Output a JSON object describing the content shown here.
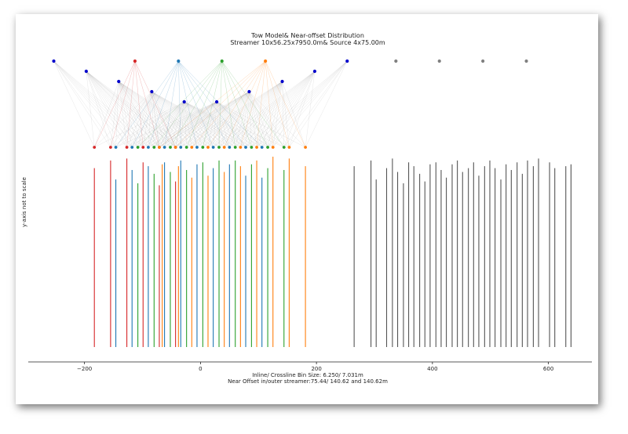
{
  "chart_data": {
    "type": "scatter",
    "title": "Tow Model& Near-offset Distribution",
    "subtitle": "Streamer 10x56.25x7950.0m& Source 4x75.00m",
    "xlabel_line1": "Inline/ Crossline Bin Size: 6.250/ 7.031m",
    "xlabel_line2": "Near Offset in/outer streamer:75.44/ 140.62 and 140.62m",
    "ylabel": "y-axis not to scale",
    "xlim": [
      -297,
      675
    ],
    "x_ticks": [
      -200,
      0,
      200,
      400,
      600
    ],
    "x_tick_labels": [
      "−200",
      "0",
      "200",
      "400",
      "600"
    ],
    "colors": {
      "red": "#d62728",
      "blue": "#1f77b4",
      "green": "#2ca02c",
      "orange": "#ff7f0e",
      "navy": "#0000cc",
      "gray": "#808080",
      "line": "#555555"
    },
    "sources": [
      {
        "x": -113,
        "color": "red"
      },
      {
        "x": -38,
        "color": "blue"
      },
      {
        "x": 37,
        "color": "green"
      },
      {
        "x": 112,
        "color": "orange"
      }
    ],
    "streamer_fronts": [
      {
        "x": -253,
        "level": 0
      },
      {
        "x": -197,
        "level": 1
      },
      {
        "x": -141,
        "level": 2
      },
      {
        "x": -84,
        "level": 3
      },
      {
        "x": -28,
        "level": 4
      },
      {
        "x": 28,
        "level": 4
      },
      {
        "x": 84,
        "level": 3
      },
      {
        "x": 141,
        "level": 2
      },
      {
        "x": 197,
        "level": 1
      },
      {
        "x": 253,
        "level": 0
      }
    ],
    "gray_top_points": [
      337,
      412,
      487,
      562
    ],
    "midpoints": [
      {
        "x": -183,
        "color": "red"
      },
      {
        "x": -155,
        "color": "red"
      },
      {
        "x": -146,
        "color": "blue"
      },
      {
        "x": -127,
        "color": "red"
      },
      {
        "x": -118,
        "color": "blue"
      },
      {
        "x": -108,
        "color": "green"
      },
      {
        "x": -99,
        "color": "red"
      },
      {
        "x": -90,
        "color": "blue"
      },
      {
        "x": -80,
        "color": "green"
      },
      {
        "x": -71,
        "color": "red"
      },
      {
        "x": -71,
        "color": "orange"
      },
      {
        "x": -62,
        "color": "blue"
      },
      {
        "x": -52,
        "color": "green"
      },
      {
        "x": -43,
        "color": "red"
      },
      {
        "x": -43,
        "color": "orange"
      },
      {
        "x": -34,
        "color": "blue"
      },
      {
        "x": -24,
        "color": "green"
      },
      {
        "x": -15,
        "color": "orange"
      },
      {
        "x": -6,
        "color": "blue"
      },
      {
        "x": 4,
        "color": "green"
      },
      {
        "x": 13,
        "color": "orange"
      },
      {
        "x": 22,
        "color": "blue"
      },
      {
        "x": 32,
        "color": "green"
      },
      {
        "x": 41,
        "color": "orange"
      },
      {
        "x": 50,
        "color": "blue"
      },
      {
        "x": 60,
        "color": "green"
      },
      {
        "x": 69,
        "color": "orange"
      },
      {
        "x": 78,
        "color": "blue"
      },
      {
        "x": 88,
        "color": "green"
      },
      {
        "x": 97,
        "color": "orange"
      },
      {
        "x": 106,
        "color": "blue"
      },
      {
        "x": 116,
        "color": "green"
      },
      {
        "x": 125,
        "color": "orange"
      },
      {
        "x": 144,
        "color": "green"
      },
      {
        "x": 153,
        "color": "orange"
      },
      {
        "x": 181,
        "color": "orange"
      }
    ],
    "colored_bars": [
      {
        "x": -183,
        "h": 0.94,
        "color": "red"
      },
      {
        "x": -155,
        "h": 0.98,
        "color": "red"
      },
      {
        "x": -146,
        "h": 0.88,
        "color": "blue"
      },
      {
        "x": -127,
        "h": 0.99,
        "color": "red"
      },
      {
        "x": -118,
        "h": 0.93,
        "color": "blue"
      },
      {
        "x": -108,
        "h": 0.86,
        "color": "green"
      },
      {
        "x": -99,
        "h": 0.97,
        "color": "red"
      },
      {
        "x": -90,
        "h": 0.95,
        "color": "blue"
      },
      {
        "x": -80,
        "h": 0.91,
        "color": "green"
      },
      {
        "x": -71,
        "h": 0.85,
        "color": "red"
      },
      {
        "x": -66,
        "h": 0.96,
        "color": "orange"
      },
      {
        "x": -62,
        "h": 0.97,
        "color": "blue"
      },
      {
        "x": -52,
        "h": 0.92,
        "color": "green"
      },
      {
        "x": -43,
        "h": 0.87,
        "color": "red"
      },
      {
        "x": -38,
        "h": 0.95,
        "color": "orange"
      },
      {
        "x": -34,
        "h": 0.98,
        "color": "blue"
      },
      {
        "x": -24,
        "h": 0.93,
        "color": "green"
      },
      {
        "x": -15,
        "h": 0.89,
        "color": "orange"
      },
      {
        "x": -6,
        "h": 0.96,
        "color": "blue"
      },
      {
        "x": 4,
        "h": 0.97,
        "color": "green"
      },
      {
        "x": 13,
        "h": 0.9,
        "color": "orange"
      },
      {
        "x": 22,
        "h": 0.94,
        "color": "blue"
      },
      {
        "x": 32,
        "h": 0.98,
        "color": "green"
      },
      {
        "x": 41,
        "h": 0.92,
        "color": "orange"
      },
      {
        "x": 50,
        "h": 0.96,
        "color": "blue"
      },
      {
        "x": 60,
        "h": 0.98,
        "color": "green"
      },
      {
        "x": 69,
        "h": 0.95,
        "color": "orange"
      },
      {
        "x": 78,
        "h": 0.9,
        "color": "blue"
      },
      {
        "x": 88,
        "h": 0.96,
        "color": "green"
      },
      {
        "x": 97,
        "h": 0.98,
        "color": "orange"
      },
      {
        "x": 106,
        "h": 0.89,
        "color": "blue"
      },
      {
        "x": 116,
        "h": 0.94,
        "color": "green"
      },
      {
        "x": 125,
        "h": 1.0,
        "color": "orange"
      },
      {
        "x": 144,
        "h": 0.93,
        "color": "green"
      },
      {
        "x": 153,
        "h": 0.99,
        "color": "orange"
      },
      {
        "x": 181,
        "h": 0.95,
        "color": "orange"
      }
    ],
    "gray_bars": [
      {
        "x": 265,
        "h": 0.95
      },
      {
        "x": 294,
        "h": 0.98
      },
      {
        "x": 303,
        "h": 0.88
      },
      {
        "x": 321,
        "h": 0.94
      },
      {
        "x": 331,
        "h": 0.99
      },
      {
        "x": 340,
        "h": 0.92
      },
      {
        "x": 350,
        "h": 0.86
      },
      {
        "x": 359,
        "h": 0.97
      },
      {
        "x": 368,
        "h": 0.95
      },
      {
        "x": 378,
        "h": 0.91
      },
      {
        "x": 387,
        "h": 0.87
      },
      {
        "x": 396,
        "h": 0.96
      },
      {
        "x": 406,
        "h": 0.97
      },
      {
        "x": 415,
        "h": 0.93
      },
      {
        "x": 424,
        "h": 0.89
      },
      {
        "x": 434,
        "h": 0.96
      },
      {
        "x": 443,
        "h": 0.98
      },
      {
        "x": 452,
        "h": 0.92
      },
      {
        "x": 462,
        "h": 0.94
      },
      {
        "x": 471,
        "h": 0.97
      },
      {
        "x": 480,
        "h": 0.9
      },
      {
        "x": 490,
        "h": 0.95
      },
      {
        "x": 499,
        "h": 0.98
      },
      {
        "x": 508,
        "h": 0.94
      },
      {
        "x": 518,
        "h": 0.88
      },
      {
        "x": 527,
        "h": 0.96
      },
      {
        "x": 536,
        "h": 0.93
      },
      {
        "x": 546,
        "h": 0.97
      },
      {
        "x": 555,
        "h": 0.91
      },
      {
        "x": 564,
        "h": 0.98
      },
      {
        "x": 574,
        "h": 0.95
      },
      {
        "x": 583,
        "h": 0.99
      },
      {
        "x": 602,
        "h": 0.97
      },
      {
        "x": 611,
        "h": 0.94
      },
      {
        "x": 630,
        "h": 0.95
      },
      {
        "x": 639,
        "h": 0.96
      }
    ]
  }
}
